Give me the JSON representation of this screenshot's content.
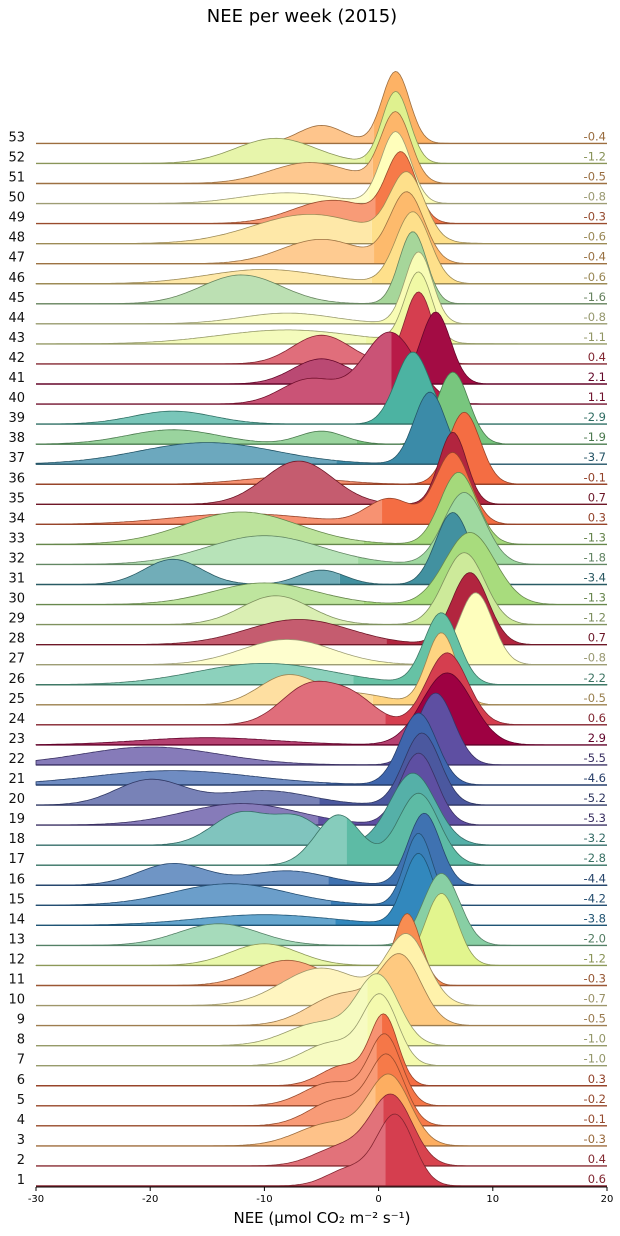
{
  "chart_data": {
    "type": "ridgeline",
    "title": "NEE per week (2015)",
    "xlabel": "NEE (µmol CO₂ m⁻² s⁻¹)",
    "xlim": [
      -30,
      20
    ],
    "xticks": [
      -30,
      -20,
      -10,
      0,
      10,
      20
    ],
    "grid": false,
    "colormap": "Spectral",
    "series": [
      {
        "name": "1",
        "mean": 0.6,
        "label": "0.6",
        "color": "#d53e4f",
        "components": [
          [
            1.5,
            1.6,
            1.0
          ],
          [
            -2.5,
            2.0,
            0.25
          ]
        ]
      },
      {
        "name": "2",
        "mean": 0.4,
        "label": "0.4",
        "color": "#d8434e",
        "components": [
          [
            1.2,
            1.8,
            1.0
          ],
          [
            -3.0,
            2.5,
            0.3
          ]
        ]
      },
      {
        "name": "3",
        "mean": -0.3,
        "label": "-0.3",
        "color": "#fdae61",
        "components": [
          [
            1.0,
            1.8,
            1.0
          ],
          [
            -4.0,
            3.0,
            0.35
          ]
        ]
      },
      {
        "name": "4",
        "mean": -0.1,
        "label": "-0.1",
        "color": "#f67a49",
        "components": [
          [
            0.8,
            1.5,
            1.0
          ],
          [
            -3.5,
            2.5,
            0.4
          ]
        ]
      },
      {
        "name": "5",
        "mean": -0.2,
        "label": "-0.2",
        "color": "#f57748",
        "components": [
          [
            0.6,
            1.4,
            1.0
          ],
          [
            -4.0,
            2.5,
            0.35
          ]
        ]
      },
      {
        "name": "6",
        "mean": 0.3,
        "label": "0.3",
        "color": "#f46d43",
        "components": [
          [
            0.5,
            1.2,
            1.0
          ],
          [
            -3.0,
            2.0,
            0.3
          ]
        ]
      },
      {
        "name": "7",
        "mean": -1.0,
        "label": "-1.0",
        "color": "#f4faae",
        "components": [
          [
            0.2,
            1.5,
            1.0
          ],
          [
            -4.0,
            2.5,
            0.35
          ]
        ]
      },
      {
        "name": "8",
        "mean": -1.0,
        "label": "-1.0",
        "color": "#f2f9aa",
        "components": [
          [
            0.0,
            1.8,
            1.0
          ],
          [
            -5.0,
            3.0,
            0.35
          ]
        ]
      },
      {
        "name": "9",
        "mean": -0.5,
        "label": "-0.5",
        "color": "#fec980",
        "components": [
          [
            2.0,
            1.8,
            1.0
          ],
          [
            -3.0,
            3.0,
            0.5
          ]
        ]
      },
      {
        "name": "10",
        "mean": -0.7,
        "label": "-0.7",
        "color": "#fff2ab",
        "components": [
          [
            2.5,
            1.8,
            1.0
          ],
          [
            -5.0,
            3.5,
            0.55
          ]
        ]
      },
      {
        "name": "11",
        "mean": -0.3,
        "label": "-0.3",
        "color": "#f88d52",
        "components": [
          [
            2.5,
            1.2,
            1.0
          ],
          [
            -8.0,
            3.0,
            0.35
          ]
        ]
      },
      {
        "name": "12",
        "mean": -1.2,
        "label": "-1.2",
        "color": "#e2f58e",
        "components": [
          [
            5.5,
            1.4,
            1.0
          ],
          [
            -10.0,
            3.0,
            0.3
          ]
        ]
      },
      {
        "name": "13",
        "mean": -2.0,
        "label": "-2.0",
        "color": "#88cfa4",
        "components": [
          [
            5.5,
            1.6,
            1.0
          ],
          [
            -14.0,
            3.5,
            0.3
          ]
        ]
      },
      {
        "name": "14",
        "mean": -3.8,
        "label": "-3.8",
        "color": "#3288bd",
        "components": [
          [
            3.5,
            1.3,
            1.0
          ],
          [
            -10.0,
            6.0,
            0.15
          ]
        ]
      },
      {
        "name": "15",
        "mean": -4.2,
        "label": "-4.2",
        "color": "#3a7eb8",
        "components": [
          [
            3.5,
            1.2,
            1.0
          ],
          [
            -13.0,
            5.0,
            0.3
          ]
        ]
      },
      {
        "name": "16",
        "mean": -4.4,
        "label": "-4.4",
        "color": "#3f72b1",
        "components": [
          [
            4.0,
            1.4,
            1.0
          ],
          [
            -18.0,
            3.0,
            0.3
          ],
          [
            -8.0,
            3.5,
            0.2
          ]
        ]
      },
      {
        "name": "17",
        "mean": -2.8,
        "label": "-2.8",
        "color": "#5dbba5",
        "components": [
          [
            3.5,
            1.8,
            1.0
          ],
          [
            -3.5,
            2.0,
            0.7
          ]
        ]
      },
      {
        "name": "18",
        "mean": -3.2,
        "label": "-3.2",
        "color": "#55b0a8",
        "components": [
          [
            3.0,
            2.0,
            1.0
          ],
          [
            -12.0,
            2.5,
            0.45
          ],
          [
            -7.0,
            2.0,
            0.35
          ]
        ]
      },
      {
        "name": "19",
        "mean": -5.3,
        "label": "-5.3",
        "color": "#5e4fa2",
        "components": [
          [
            3.5,
            1.6,
            1.0
          ],
          [
            -12.0,
            5.0,
            0.3
          ]
        ]
      },
      {
        "name": "20",
        "mean": -5.2,
        "label": "-5.2",
        "color": "#4b589f",
        "components": [
          [
            3.8,
            1.6,
            1.0
          ],
          [
            -20.0,
            3.0,
            0.35
          ],
          [
            -10.0,
            4.0,
            0.2
          ]
        ]
      },
      {
        "name": "21",
        "mean": -4.6,
        "label": "-4.6",
        "color": "#3f66ad",
        "components": [
          [
            3.5,
            1.6,
            1.0
          ],
          [
            -18.0,
            7.0,
            0.2
          ]
        ]
      },
      {
        "name": "22",
        "mean": -5.5,
        "label": "-5.5",
        "color": "#5e4fa2",
        "components": [
          [
            5.0,
            1.6,
            1.0
          ],
          [
            -20.0,
            6.0,
            0.25
          ]
        ]
      },
      {
        "name": "23",
        "mean": 2.9,
        "label": "2.9",
        "color": "#9e0142",
        "components": [
          [
            6.0,
            2.2,
            1.0
          ],
          [
            -15.0,
            6.0,
            0.1
          ]
        ]
      },
      {
        "name": "24",
        "mean": 0.6,
        "label": "0.6",
        "color": "#d53e4f",
        "components": [
          [
            6.0,
            1.8,
            1.0
          ],
          [
            -6.0,
            2.5,
            0.55
          ],
          [
            -2.0,
            2.0,
            0.3
          ]
        ]
      },
      {
        "name": "25",
        "mean": -0.5,
        "label": "-0.5",
        "color": "#fed481",
        "components": [
          [
            5.5,
            1.3,
            1.0
          ],
          [
            -8.0,
            2.5,
            0.4
          ],
          [
            -2.0,
            3.0,
            0.15
          ]
        ]
      },
      {
        "name": "26",
        "mean": -2.2,
        "label": "-2.2",
        "color": "#66c2a5",
        "components": [
          [
            5.5,
            1.5,
            1.0
          ],
          [
            -10.0,
            6.0,
            0.3
          ]
        ]
      },
      {
        "name": "27",
        "mean": -0.8,
        "label": "-0.8",
        "color": "#fefebd",
        "components": [
          [
            8.5,
            1.5,
            1.0
          ],
          [
            -8.0,
            4.0,
            0.35
          ]
        ]
      },
      {
        "name": "28",
        "mean": 0.7,
        "label": "0.7",
        "color": "#b2253f",
        "components": [
          [
            8.0,
            1.6,
            1.0
          ],
          [
            -7.0,
            4.5,
            0.35
          ]
        ]
      },
      {
        "name": "29",
        "mean": -1.2,
        "label": "-1.2",
        "color": "#cdea9a",
        "components": [
          [
            7.5,
            1.8,
            1.0
          ],
          [
            -9.0,
            3.0,
            0.4
          ]
        ]
      },
      {
        "name": "30",
        "mean": -1.3,
        "label": "-1.3",
        "color": "#a8dc7d",
        "components": [
          [
            8.0,
            2.2,
            1.0
          ],
          [
            -10.0,
            4.5,
            0.3
          ]
        ]
      },
      {
        "name": "31",
        "mean": -3.4,
        "label": "-3.4",
        "color": "#4291a0",
        "components": [
          [
            6.5,
            1.5,
            1.0
          ],
          [
            -18.0,
            2.5,
            0.35
          ],
          [
            -5.0,
            2.0,
            0.2
          ]
        ]
      },
      {
        "name": "32",
        "mean": -1.8,
        "label": "-1.8",
        "color": "#9fd9a0",
        "components": [
          [
            7.5,
            1.8,
            1.0
          ],
          [
            -10.0,
            5.0,
            0.4
          ]
        ]
      },
      {
        "name": "33",
        "mean": -1.3,
        "label": "-1.3",
        "color": "#a5d97b",
        "components": [
          [
            7.0,
            1.6,
            1.0
          ],
          [
            -12.0,
            5.0,
            0.45
          ]
        ]
      },
      {
        "name": "34",
        "mean": 0.3,
        "label": "0.3",
        "color": "#f46d43",
        "components": [
          [
            6.5,
            1.5,
            1.0
          ],
          [
            1.0,
            2.0,
            0.35
          ],
          [
            -12.0,
            6.0,
            0.15
          ]
        ]
      },
      {
        "name": "35",
        "mean": 0.7,
        "label": "0.7",
        "color": "#b2253f",
        "components": [
          [
            6.5,
            1.2,
            1.0
          ],
          [
            -7.0,
            3.0,
            0.6
          ]
        ]
      },
      {
        "name": "36",
        "mean": -0.1,
        "label": "-0.1",
        "color": "#f46d43",
        "components": [
          [
            7.5,
            1.4,
            1.0
          ],
          [
            -8.0,
            4.0,
            0.1
          ]
        ]
      },
      {
        "name": "37",
        "mean": -3.7,
        "label": "-3.7",
        "color": "#3b8ba8",
        "components": [
          [
            4.5,
            1.4,
            1.0
          ],
          [
            -15.0,
            6.0,
            0.3
          ]
        ]
      },
      {
        "name": "38",
        "mean": -1.9,
        "label": "-1.9",
        "color": "#78c67e",
        "components": [
          [
            6.5,
            1.4,
            1.0
          ],
          [
            -18.0,
            4.0,
            0.2
          ],
          [
            -5.0,
            2.0,
            0.18
          ]
        ]
      },
      {
        "name": "39",
        "mean": -2.9,
        "label": "-2.9",
        "color": "#4cb3a2",
        "components": [
          [
            3.0,
            1.5,
            1.0
          ],
          [
            -18.0,
            3.5,
            0.18
          ]
        ]
      },
      {
        "name": "40",
        "mean": 1.1,
        "label": "1.1",
        "color": "#b81a48",
        "components": [
          [
            1.0,
            2.3,
            1.0
          ],
          [
            -6.0,
            2.5,
            0.35
          ]
        ]
      },
      {
        "name": "41",
        "mean": 2.1,
        "label": "2.1",
        "color": "#a30c44",
        "components": [
          [
            5.0,
            1.3,
            1.0
          ],
          [
            -5.0,
            2.5,
            0.35
          ]
        ]
      },
      {
        "name": "42",
        "mean": 0.4,
        "label": "0.4",
        "color": "#d53e4f",
        "components": [
          [
            3.5,
            1.2,
            1.0
          ],
          [
            -5.0,
            2.5,
            0.4
          ]
        ]
      },
      {
        "name": "43",
        "mean": -1.1,
        "label": "-1.1",
        "color": "#f0f9a5",
        "components": [
          [
            3.5,
            1.2,
            1.0
          ],
          [
            -8.0,
            6.0,
            0.2
          ]
        ]
      },
      {
        "name": "44",
        "mean": -0.8,
        "label": "-0.8",
        "color": "#f8fcb5",
        "components": [
          [
            3.5,
            1.2,
            1.0
          ],
          [
            -8.0,
            4.0,
            0.15
          ]
        ]
      },
      {
        "name": "45",
        "mean": -1.6,
        "label": "-1.6",
        "color": "#a6d69a",
        "components": [
          [
            3.0,
            1.2,
            1.0
          ],
          [
            -12.0,
            3.5,
            0.4
          ]
        ]
      },
      {
        "name": "46",
        "mean": -0.6,
        "label": "-0.6",
        "color": "#fee08b",
        "components": [
          [
            3.0,
            1.5,
            1.0
          ],
          [
            -10.0,
            5.0,
            0.2
          ]
        ]
      },
      {
        "name": "47",
        "mean": -0.4,
        "label": "-0.4",
        "color": "#fdba6c",
        "components": [
          [
            2.5,
            1.5,
            1.0
          ],
          [
            -5.0,
            3.5,
            0.35
          ]
        ]
      },
      {
        "name": "48",
        "mean": -0.6,
        "label": "-0.6",
        "color": "#fee08b",
        "components": [
          [
            2.5,
            1.5,
            1.0
          ],
          [
            -6.0,
            5.0,
            0.45
          ]
        ]
      },
      {
        "name": "49",
        "mean": -0.3,
        "label": "-0.3",
        "color": "#f67a49",
        "components": [
          [
            2.0,
            1.3,
            1.0
          ],
          [
            -4.0,
            3.5,
            0.35
          ]
        ]
      },
      {
        "name": "50",
        "mean": -0.8,
        "label": "-0.8",
        "color": "#fffebb",
        "components": [
          [
            1.5,
            1.3,
            1.0
          ],
          [
            -8.0,
            4.0,
            0.15
          ]
        ]
      },
      {
        "name": "51",
        "mean": -0.5,
        "label": "-0.5",
        "color": "#fdb66a",
        "components": [
          [
            1.5,
            1.3,
            1.0
          ],
          [
            -6.0,
            3.5,
            0.3
          ]
        ]
      },
      {
        "name": "52",
        "mean": -1.2,
        "label": "-1.2",
        "color": "#dff18f",
        "components": [
          [
            1.5,
            1.2,
            1.0
          ],
          [
            -9.0,
            3.5,
            0.35
          ]
        ]
      },
      {
        "name": "53",
        "mean": -0.4,
        "label": "-0.4",
        "color": "#fdb265",
        "components": [
          [
            1.5,
            1.2,
            1.0
          ],
          [
            -5.0,
            2.0,
            0.25
          ]
        ]
      }
    ]
  }
}
